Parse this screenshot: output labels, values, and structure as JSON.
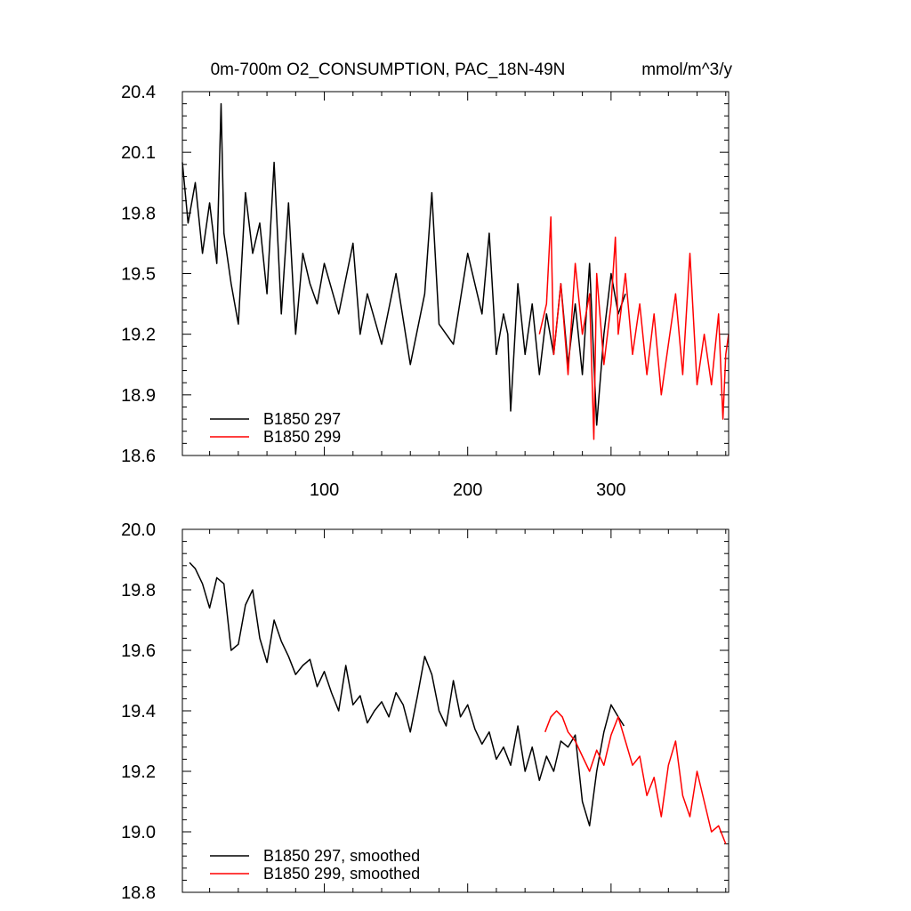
{
  "chart_data": [
    {
      "type": "line",
      "title": "0m-700m O2_CONSUMPTION, PAC_18N-49N",
      "units": "mmol/m^3/y",
      "xlim": [
        1,
        382
      ],
      "ylim": [
        18.6,
        20.4
      ],
      "xticks": [
        100,
        200,
        300
      ],
      "yticks": [
        18.6,
        18.9,
        19.2,
        19.5,
        19.8,
        20.1,
        20.4
      ],
      "legend_position": "bottom-left",
      "series": [
        {
          "name": "B1850 297",
          "color": "#000000",
          "x": [
            1,
            5,
            10,
            15,
            20,
            25,
            28,
            30,
            35,
            40,
            45,
            50,
            55,
            60,
            65,
            70,
            75,
            80,
            85,
            90,
            95,
            100,
            110,
            120,
            125,
            130,
            140,
            150,
            160,
            170,
            175,
            180,
            190,
            200,
            210,
            215,
            220,
            225,
            228,
            230,
            235,
            240,
            245,
            250,
            255,
            260,
            265,
            270,
            275,
            280,
            285,
            290,
            295,
            300,
            305,
            310
          ],
          "values": [
            20.05,
            19.75,
            19.95,
            19.6,
            19.85,
            19.55,
            20.34,
            19.7,
            19.45,
            19.25,
            19.9,
            19.6,
            19.75,
            19.4,
            20.05,
            19.3,
            19.85,
            19.2,
            19.6,
            19.45,
            19.35,
            19.55,
            19.3,
            19.65,
            19.2,
            19.4,
            19.15,
            19.5,
            19.05,
            19.4,
            19.9,
            19.25,
            19.15,
            19.6,
            19.3,
            19.7,
            19.1,
            19.3,
            19.2,
            18.82,
            19.45,
            19.1,
            19.35,
            19.0,
            19.3,
            19.1,
            19.45,
            19.05,
            19.35,
            19.0,
            19.55,
            18.75,
            19.2,
            19.5,
            19.3,
            19.4
          ]
        },
        {
          "name": "B1850 299",
          "color": "#ff0000",
          "x": [
            250,
            255,
            258,
            260,
            265,
            270,
            275,
            280,
            285,
            288,
            290,
            295,
            300,
            303,
            305,
            310,
            315,
            320,
            325,
            330,
            335,
            340,
            345,
            350,
            355,
            360,
            365,
            370,
            375,
            378,
            380,
            382
          ],
          "values": [
            19.2,
            19.35,
            19.78,
            19.1,
            19.45,
            19.0,
            19.55,
            19.2,
            19.4,
            18.68,
            19.5,
            19.05,
            19.35,
            19.68,
            19.2,
            19.5,
            19.1,
            19.35,
            19.0,
            19.3,
            18.9,
            19.15,
            19.4,
            19.0,
            19.6,
            18.95,
            19.2,
            18.95,
            19.3,
            18.78,
            19.1,
            19.2
          ]
        }
      ]
    },
    {
      "type": "line",
      "title": "",
      "xlim": [
        1,
        382
      ],
      "ylim": [
        18.8,
        20.0
      ],
      "yticks": [
        18.8,
        19.0,
        19.2,
        19.4,
        19.6,
        19.8,
        20.0
      ],
      "legend_position": "bottom-left",
      "series": [
        {
          "name": "B1850 297, smoothed",
          "color": "#000000",
          "x": [
            6,
            10,
            15,
            20,
            25,
            30,
            35,
            40,
            45,
            50,
            55,
            60,
            65,
            70,
            75,
            80,
            85,
            90,
            95,
            100,
            105,
            110,
            115,
            120,
            125,
            130,
            135,
            140,
            145,
            150,
            155,
            160,
            165,
            170,
            175,
            180,
            185,
            190,
            195,
            200,
            205,
            210,
            215,
            220,
            225,
            230,
            235,
            240,
            245,
            250,
            255,
            260,
            265,
            270,
            275,
            280,
            285,
            290,
            295,
            300,
            305,
            309
          ],
          "values": [
            19.89,
            19.87,
            19.82,
            19.74,
            19.84,
            19.82,
            19.6,
            19.62,
            19.75,
            19.8,
            19.64,
            19.56,
            19.7,
            19.63,
            19.58,
            19.52,
            19.55,
            19.57,
            19.48,
            19.53,
            19.46,
            19.4,
            19.55,
            19.42,
            19.45,
            19.36,
            19.4,
            19.43,
            19.38,
            19.46,
            19.42,
            19.33,
            19.45,
            19.58,
            19.52,
            19.4,
            19.35,
            19.5,
            19.38,
            19.42,
            19.34,
            19.29,
            19.33,
            19.24,
            19.28,
            19.22,
            19.35,
            19.2,
            19.28,
            19.17,
            19.25,
            19.2,
            19.3,
            19.28,
            19.32,
            19.1,
            19.02,
            19.2,
            19.33,
            19.42,
            19.38,
            19.35
          ]
        },
        {
          "name": "B1850 299, smoothed",
          "color": "#ff0000",
          "x": [
            254,
            258,
            262,
            266,
            270,
            275,
            280,
            285,
            290,
            295,
            300,
            305,
            310,
            315,
            320,
            325,
            330,
            335,
            340,
            345,
            350,
            355,
            360,
            365,
            370,
            375,
            380
          ],
          "values": [
            19.33,
            19.38,
            19.4,
            19.38,
            19.33,
            19.3,
            19.25,
            19.2,
            19.27,
            19.22,
            19.32,
            19.38,
            19.3,
            19.22,
            19.25,
            19.12,
            19.18,
            19.05,
            19.22,
            19.3,
            19.12,
            19.05,
            19.2,
            19.1,
            19.0,
            19.02,
            18.96
          ]
        }
      ]
    }
  ]
}
